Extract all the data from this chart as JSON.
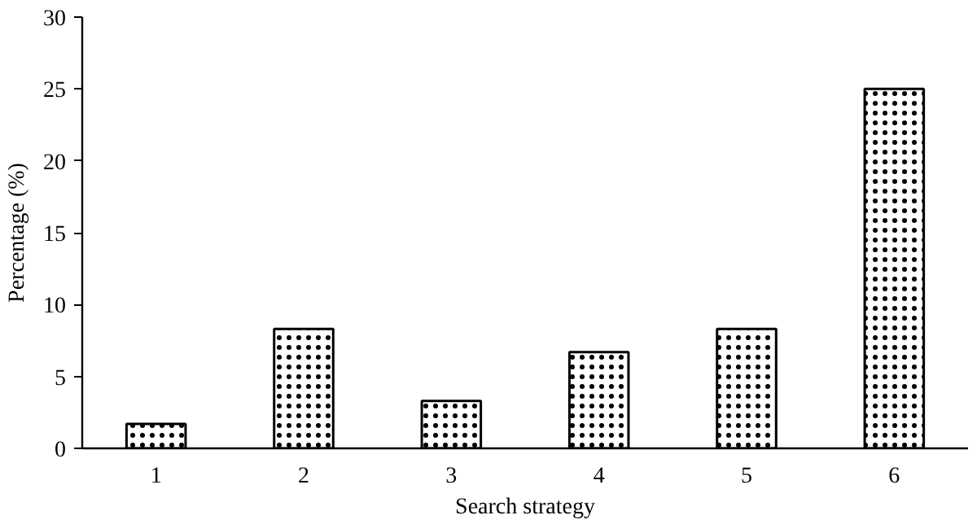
{
  "chart_data": {
    "type": "bar",
    "xlabel": "Search strategy",
    "ylabel": "Percentage (%)",
    "categories": [
      "1",
      "2",
      "3",
      "4",
      "5",
      "6"
    ],
    "values": [
      1.7,
      8.3,
      3.3,
      6.7,
      8.3,
      25
    ],
    "color": "#ffffff",
    "ylim": [
      0,
      30
    ],
    "yticks": [
      0,
      5,
      10,
      15,
      20,
      25,
      30
    ],
    "grid": false
  }
}
